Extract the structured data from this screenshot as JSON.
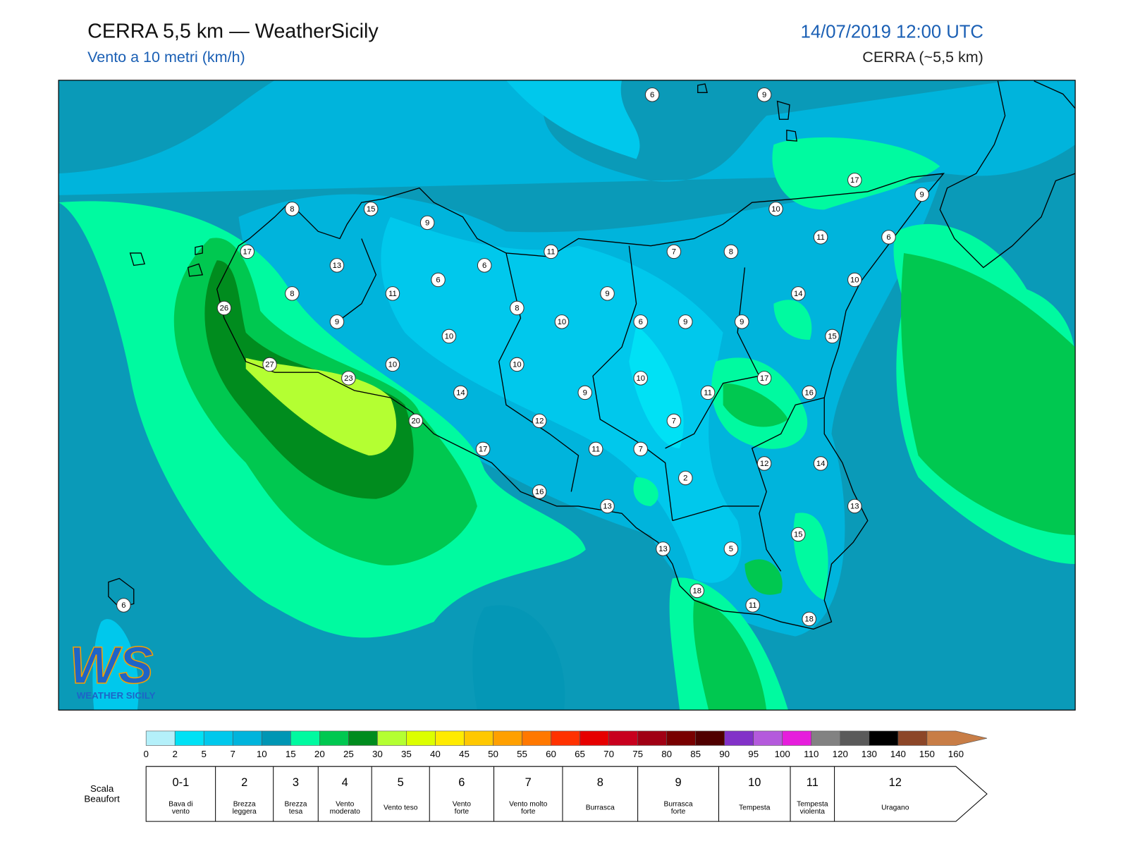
{
  "header": {
    "title": "CERRA 5,5 km — WeatherSicily",
    "subtitle": "Vento a 10 metri (km/h)",
    "date": "14/07/2019 12:00 UTC",
    "model": "CERRA (~5,5 km)"
  },
  "stations": [
    6,
    9,
    17,
    9,
    10,
    11,
    6,
    8,
    15,
    9,
    17,
    13,
    11,
    7,
    8,
    6,
    6,
    10,
    8,
    11,
    9,
    14,
    26,
    8,
    9,
    10,
    6,
    9,
    9,
    10,
    15,
    27,
    10,
    10,
    23,
    10,
    17,
    14,
    9,
    11,
    16,
    20,
    12,
    7,
    17,
    11,
    7,
    12,
    14,
    2,
    16,
    13,
    13,
    15,
    13,
    5,
    18,
    11,
    18,
    6
  ],
  "logo": {
    "mark": "WS",
    "name": "WEATHER SICILY"
  },
  "colorbar": {
    "ticks": [
      0,
      2,
      5,
      7,
      10,
      15,
      20,
      25,
      30,
      35,
      40,
      45,
      50,
      55,
      60,
      65,
      70,
      75,
      80,
      85,
      90,
      95,
      100,
      110,
      120,
      130,
      140,
      150,
      160
    ],
    "colors": [
      "#b4f0fa",
      "#00e1f5",
      "#00c8ec",
      "#00b4dc",
      "#0096b4",
      "#00faa0",
      "#00c850",
      "#008c1e",
      "#b4ff32",
      "#dcff00",
      "#ffeb00",
      "#ffc800",
      "#ffa000",
      "#ff7800",
      "#ff3200",
      "#e60000",
      "#c8001e",
      "#a00014",
      "#780000",
      "#500000",
      "#8232c8",
      "#b45adc",
      "#e61edc",
      "#828282",
      "#5a5a5a",
      "#000000",
      "#8c4628",
      "#c87d46"
    ]
  },
  "beaufort": {
    "label": [
      "Scala",
      "Beaufort"
    ],
    "forces": [
      {
        "force": "0-1",
        "desc": [
          "Bava di",
          "vento"
        ]
      },
      {
        "force": "2",
        "desc": [
          "Brezza",
          "leggera"
        ]
      },
      {
        "force": "3",
        "desc": [
          "Brezza",
          "tesa"
        ]
      },
      {
        "force": "4",
        "desc": [
          "Vento",
          "moderato"
        ]
      },
      {
        "force": "5",
        "desc": [
          "Vento teso"
        ]
      },
      {
        "force": "6",
        "desc": [
          "Vento",
          "forte"
        ]
      },
      {
        "force": "7",
        "desc": [
          "Vento molto",
          "forte"
        ]
      },
      {
        "force": "8",
        "desc": [
          "Burrasca"
        ]
      },
      {
        "force": "9",
        "desc": [
          "Burrasca",
          "forte"
        ]
      },
      {
        "force": "10",
        "desc": [
          "Tempesta"
        ]
      },
      {
        "force": "11",
        "desc": [
          "Tempesta",
          "violenta"
        ]
      },
      {
        "force": "12",
        "desc": [
          "Uragano"
        ]
      }
    ]
  }
}
